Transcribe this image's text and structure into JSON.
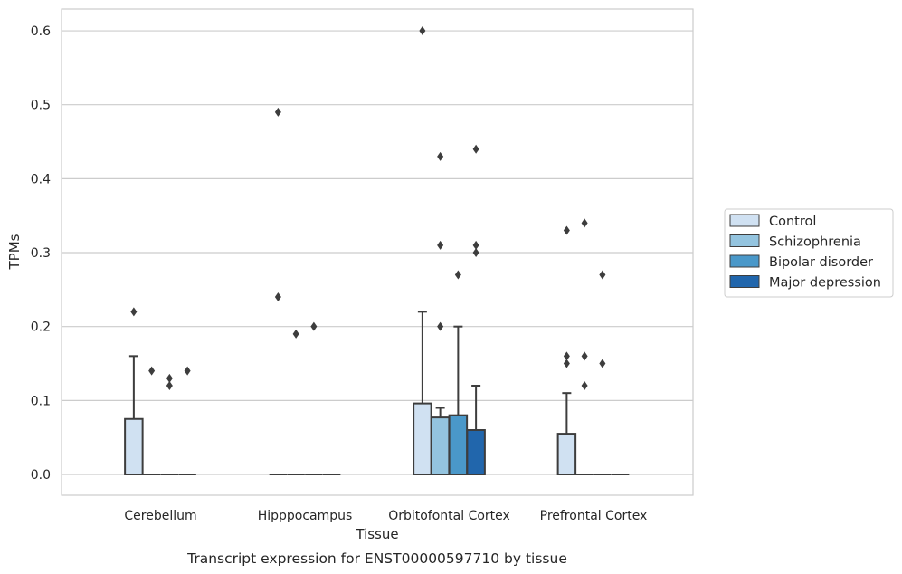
{
  "chart_data": {
    "type": "box",
    "xlabel": "Tissue",
    "ylabel": "TPMs",
    "caption": "Transcript expression for ENST00000597710 by tissue",
    "ylim": [
      -0.03,
      0.63
    ],
    "yticks": [
      "0.0",
      "0.1",
      "0.2",
      "0.3",
      "0.4",
      "0.5",
      "0.6"
    ],
    "grid": "horizontal",
    "legend_position": "right",
    "categories": [
      "Cerebellum",
      "Hipppocampus",
      "Orbitofontal Cortex",
      "Prefrontal Cortex"
    ],
    "series": [
      {
        "name": "Control",
        "color": "#d0e1f2",
        "boxes": [
          {
            "q1": 0,
            "q3": 0.075,
            "median": 0,
            "whisker_low": 0,
            "whisker_high": 0.16,
            "outliers": [
              0.22
            ]
          },
          {
            "q1": 0,
            "q3": 0,
            "median": 0,
            "whisker_low": 0,
            "whisker_high": 0,
            "outliers": [
              0.49,
              0.24
            ]
          },
          {
            "q1": 0,
            "q3": 0.096,
            "median": 0,
            "whisker_low": 0,
            "whisker_high": 0.22,
            "outliers": [
              0.6
            ]
          },
          {
            "q1": 0,
            "q3": 0.055,
            "median": 0,
            "whisker_low": 0,
            "whisker_high": 0.11,
            "outliers": [
              0.33,
              0.16,
              0.15
            ]
          }
        ]
      },
      {
        "name": "Schizophrenia",
        "color": "#94c4df",
        "boxes": [
          {
            "q1": 0,
            "q3": 0,
            "median": 0,
            "whisker_low": 0,
            "whisker_high": 0,
            "outliers": [
              0.14
            ]
          },
          {
            "q1": 0,
            "q3": 0,
            "median": 0,
            "whisker_low": 0,
            "whisker_high": 0,
            "outliers": [
              0.19
            ]
          },
          {
            "q1": 0,
            "q3": 0.077,
            "median": 0,
            "whisker_low": 0,
            "whisker_high": 0.09,
            "outliers": [
              0.43,
              0.31,
              0.2
            ]
          },
          {
            "q1": 0,
            "q3": 0,
            "median": 0,
            "whisker_low": 0,
            "whisker_high": 0,
            "outliers": [
              0.34,
              0.16,
              0.12
            ]
          }
        ]
      },
      {
        "name": "Bipolar disorder",
        "color": "#4a98c9",
        "boxes": [
          {
            "q1": 0,
            "q3": 0,
            "median": 0,
            "whisker_low": 0,
            "whisker_high": 0,
            "outliers": [
              0.13,
              0.12
            ]
          },
          {
            "q1": 0,
            "q3": 0,
            "median": 0,
            "whisker_low": 0,
            "whisker_high": 0,
            "outliers": [
              0.2
            ]
          },
          {
            "q1": 0,
            "q3": 0.08,
            "median": 0,
            "whisker_low": 0,
            "whisker_high": 0.2,
            "outliers": [
              0.27
            ]
          },
          {
            "q1": 0,
            "q3": 0,
            "median": 0,
            "whisker_low": 0,
            "whisker_high": 0,
            "outliers": [
              0.27,
              0.15
            ]
          }
        ]
      },
      {
        "name": "Major depression",
        "color": "#2166ac",
        "boxes": [
          {
            "q1": 0,
            "q3": 0,
            "median": 0,
            "whisker_low": 0,
            "whisker_high": 0,
            "outliers": [
              0.14
            ]
          },
          {
            "q1": 0,
            "q3": 0,
            "median": 0,
            "whisker_low": 0,
            "whisker_high": 0,
            "outliers": []
          },
          {
            "q1": 0,
            "q3": 0.06,
            "median": 0,
            "whisker_low": 0,
            "whisker_high": 0.12,
            "outliers": [
              0.44,
              0.31,
              0.3
            ]
          },
          {
            "q1": 0,
            "q3": 0,
            "median": 0,
            "whisker_low": 0,
            "whisker_high": 0,
            "outliers": []
          }
        ]
      }
    ],
    "colors": {
      "grid": "#cccccc",
      "frame": "#cccccc",
      "edge": "#3d3d3d",
      "text": "#262626"
    }
  }
}
